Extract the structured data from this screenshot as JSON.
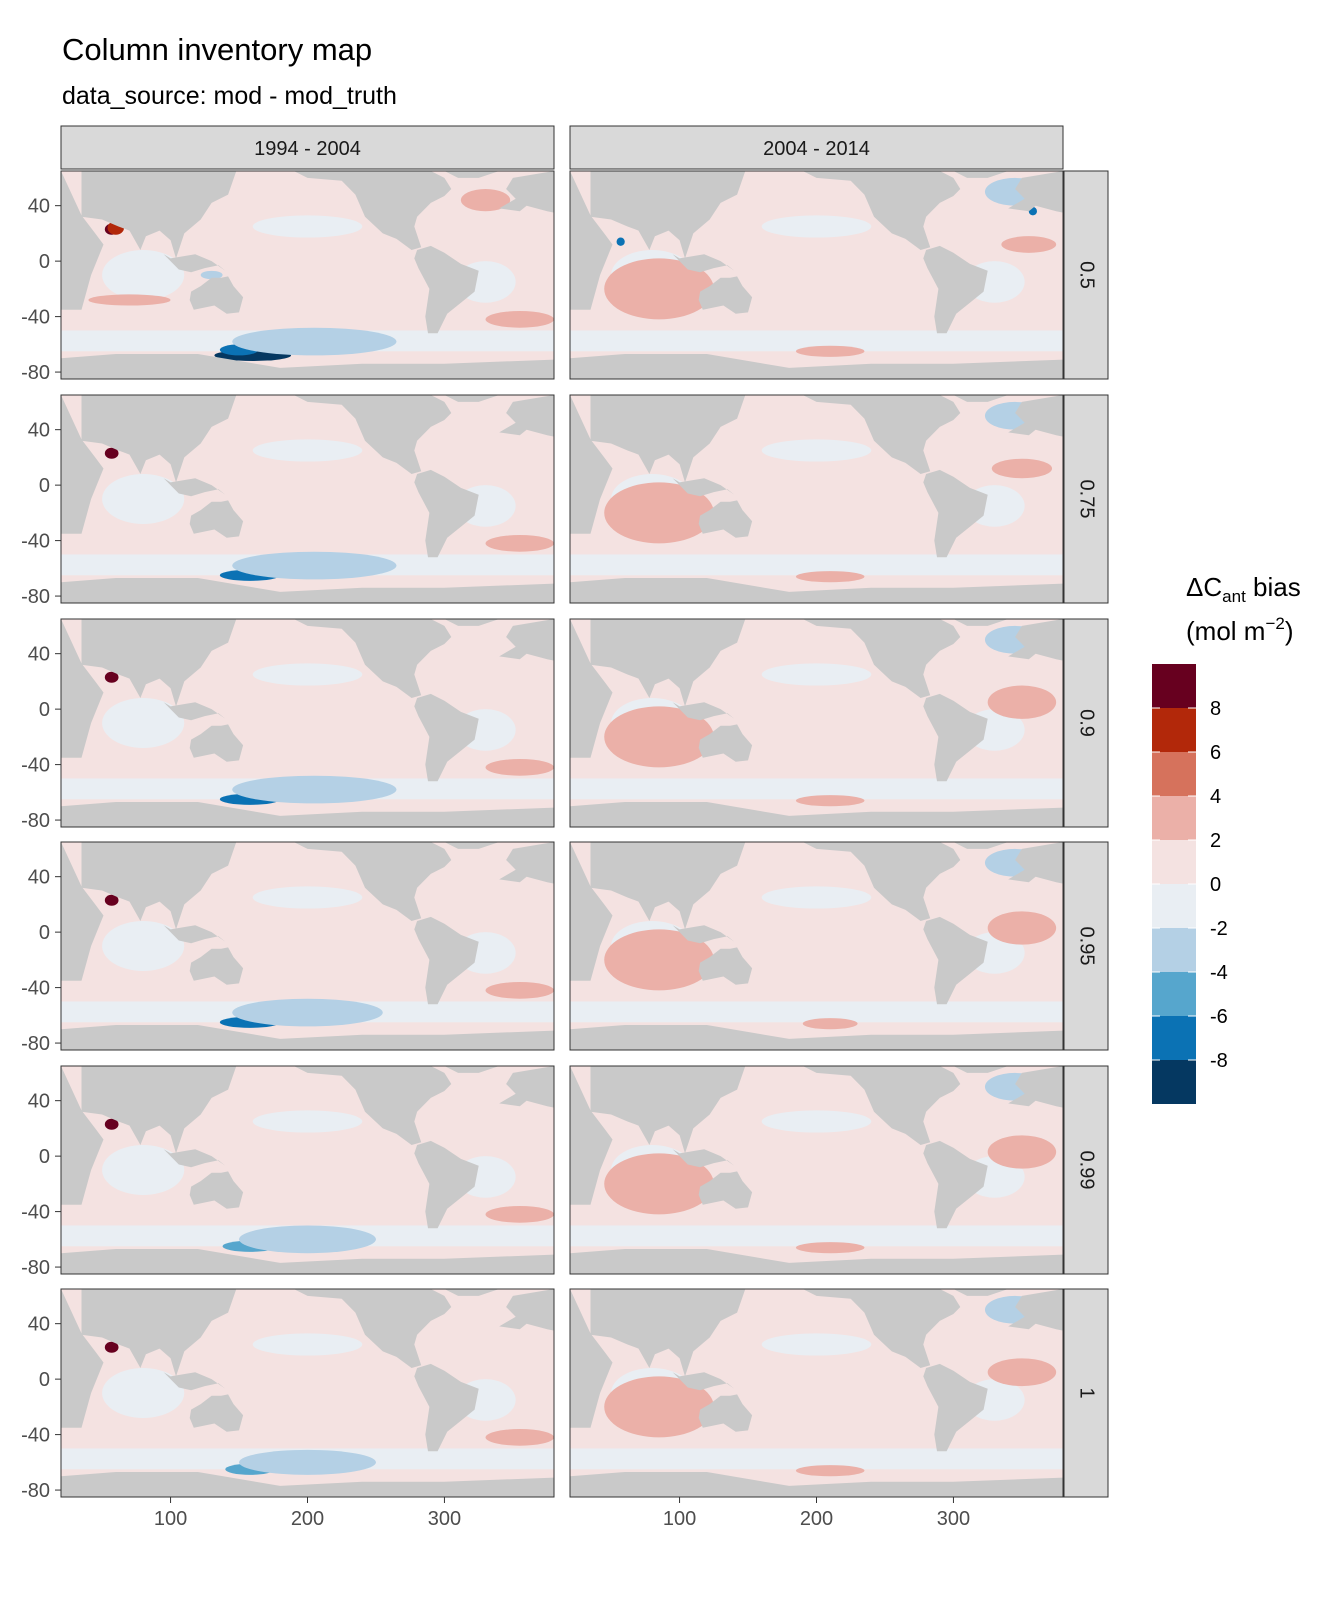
{
  "title": "Column inventory map",
  "subtitle": "data_source: mod - mod_truth",
  "columns": [
    "1994 - 2004",
    "2004 - 2014"
  ],
  "rows": [
    "0.5",
    "0.75",
    "0.9",
    "0.95",
    "0.99",
    "1"
  ],
  "axes": {
    "x_ticks": [
      "100",
      "200",
      "300"
    ],
    "y_ticks": [
      "40",
      "0",
      "-40",
      "-80"
    ],
    "x_tick_values": [
      100,
      200,
      300
    ],
    "y_tick_values": [
      40,
      0,
      -40,
      -80
    ],
    "xlim": [
      20,
      380
    ],
    "ylim": [
      -85,
      65
    ]
  },
  "legend": {
    "title_main": "ΔC",
    "title_sub": "ant",
    "title_after": " bias",
    "unit_open": "(mol m",
    "unit_exp": "−2",
    "unit_close": ")",
    "tick_labels": [
      "8",
      "6",
      "4",
      "2",
      "0",
      "-2",
      "-4",
      "-6",
      "-8"
    ],
    "bins": [
      {
        "range": "8 to 10",
        "color": "#67001f"
      },
      {
        "range": "6 to 8",
        "color": "#b2280a"
      },
      {
        "range": "4 to 6",
        "color": "#d6725c"
      },
      {
        "range": "2 to 4",
        "color": "#ebb0a8"
      },
      {
        "range": "0 to 2",
        "color": "#f4e2e1"
      },
      {
        "range": "-2 to 0",
        "color": "#e9eef3"
      },
      {
        "range": "-4 to -2",
        "color": "#b4d0e5"
      },
      {
        "range": "-6 to -4",
        "color": "#56a6cd"
      },
      {
        "range": "-8 to -6",
        "color": "#0b72b4"
      },
      {
        "range": "-10 to -8",
        "color": "#053861"
      }
    ]
  },
  "colors": {
    "land": "#c9c9c9",
    "strip": "#d9d9d9",
    "panel_border": "#333333"
  },
  "chart_data": {
    "type": "heatmap",
    "facet_columns": [
      "1994 - 2004",
      "2004 - 2014"
    ],
    "facet_rows": [
      "0.5",
      "0.75",
      "0.9",
      "0.95",
      "0.99",
      "1"
    ],
    "xlim": [
      20,
      380
    ],
    "ylim": [
      -85,
      65
    ],
    "value_bins": [
      -10,
      -8,
      -6,
      -4,
      -2,
      0,
      2,
      4,
      6,
      8,
      10
    ],
    "land_regions": [
      {
        "name": "africa",
        "lonlat": [
          [
            20,
            65
          ],
          [
            35,
            33
          ],
          [
            45,
            20
          ],
          [
            51,
            12
          ],
          [
            42,
            -10
          ],
          [
            35,
            -35
          ],
          [
            20,
            -35
          ],
          [
            20,
            65
          ]
        ]
      },
      {
        "name": "arabia_india",
        "lonlat": [
          [
            35,
            32
          ],
          [
            50,
            30
          ],
          [
            62,
            25
          ],
          [
            70,
            22
          ],
          [
            78,
            8
          ],
          [
            82,
            18
          ],
          [
            92,
            22
          ],
          [
            100,
            15
          ],
          [
            104,
            2
          ],
          [
            110,
            20
          ],
          [
            122,
            30
          ],
          [
            130,
            42
          ],
          [
            142,
            48
          ],
          [
            148,
            65
          ],
          [
            35,
            65
          ]
        ]
      },
      {
        "name": "maritime_continent",
        "lonlat": [
          [
            95,
            5
          ],
          [
            106,
            -6
          ],
          [
            115,
            -8
          ],
          [
            125,
            -5
          ],
          [
            135,
            -3
          ],
          [
            140,
            -7
          ],
          [
            130,
            0
          ],
          [
            118,
            5
          ],
          [
            100,
            2
          ]
        ]
      },
      {
        "name": "australia",
        "lonlat": [
          [
            115,
            -22
          ],
          [
            122,
            -18
          ],
          [
            130,
            -12
          ],
          [
            137,
            -12
          ],
          [
            142,
            -11
          ],
          [
            146,
            -18
          ],
          [
            153,
            -26
          ],
          [
            150,
            -37
          ],
          [
            141,
            -38
          ],
          [
            132,
            -32
          ],
          [
            117,
            -35
          ],
          [
            114,
            -28
          ]
        ]
      },
      {
        "name": "north_america",
        "lonlat": [
          [
            190,
            65
          ],
          [
            200,
            60
          ],
          [
            225,
            58
          ],
          [
            235,
            48
          ],
          [
            242,
            32
          ],
          [
            255,
            20
          ],
          [
            265,
            16
          ],
          [
            276,
            8
          ],
          [
            283,
            10
          ],
          [
            278,
            25
          ],
          [
            280,
            32
          ],
          [
            290,
            42
          ],
          [
            300,
            47
          ],
          [
            305,
            52
          ],
          [
            300,
            60
          ],
          [
            290,
            65
          ]
        ]
      },
      {
        "name": "south_america",
        "lonlat": [
          [
            280,
            8
          ],
          [
            290,
            11
          ],
          [
            300,
            6
          ],
          [
            312,
            -2
          ],
          [
            325,
            -7
          ],
          [
            322,
            -22
          ],
          [
            312,
            -30
          ],
          [
            302,
            -38
          ],
          [
            295,
            -52
          ],
          [
            288,
            -52
          ],
          [
            286,
            -40
          ],
          [
            289,
            -20
          ],
          [
            281,
            -5
          ],
          [
            278,
            2
          ]
        ]
      },
      {
        "name": "greenland",
        "lonlat": [
          [
            310,
            60
          ],
          [
            325,
            60
          ],
          [
            340,
            65
          ],
          [
            300,
            65
          ]
        ]
      },
      {
        "name": "europe",
        "lonlat": [
          [
            340,
            38
          ],
          [
            355,
            36
          ],
          [
            360,
            40
          ],
          [
            375,
            36
          ],
          [
            380,
            35
          ],
          [
            380,
            65
          ],
          [
            350,
            60
          ],
          [
            345,
            52
          ],
          [
            352,
            45
          ]
        ]
      },
      {
        "name": "antarctica",
        "lonlat": [
          [
            20,
            -85
          ],
          [
            380,
            -85
          ],
          [
            380,
            -71
          ],
          [
            300,
            -74
          ],
          [
            240,
            -74
          ],
          [
            180,
            -77
          ],
          [
            120,
            -67
          ],
          [
            60,
            -67
          ],
          [
            20,
            -70
          ]
        ]
      }
    ],
    "panels": [
      {
        "period": "1994 - 2004",
        "row": "0.5",
        "anomalies": [
          {
            "bin": "8 to 10",
            "lon": 57,
            "lat": 23,
            "rlon": 5,
            "rlat": 4
          },
          {
            "bin": "6 to 8",
            "lon": 60,
            "lat": 24,
            "rlon": 6,
            "rlat": 5
          },
          {
            "bin": "-10 to -8",
            "lon": 160,
            "lat": -68,
            "rlon": 28,
            "rlat": 4
          },
          {
            "bin": "-8 to -6",
            "lon": 150,
            "lat": -64,
            "rlon": 14,
            "rlat": 4
          },
          {
            "bin": "-4 to -2",
            "lon": 205,
            "lat": -58,
            "rlon": 60,
            "rlat": 10
          },
          {
            "bin": "-4 to -2",
            "lon": 130,
            "lat": -10,
            "rlon": 8,
            "rlat": 3
          },
          {
            "bin": "2 to 4",
            "lon": 70,
            "lat": -28,
            "rlon": 30,
            "rlat": 4
          },
          {
            "bin": "2 to 4",
            "lon": 355,
            "lat": -42,
            "rlon": 25,
            "rlat": 6
          },
          {
            "bin": "2 to 4",
            "lon": 330,
            "lat": 44,
            "rlon": 18,
            "rlat": 8
          }
        ]
      },
      {
        "period": "2004 - 2014",
        "row": "0.5",
        "anomalies": [
          {
            "bin": "2 to 4",
            "lon": 85,
            "lat": -20,
            "rlon": 40,
            "rlat": 22
          },
          {
            "bin": "2 to 4",
            "lon": 355,
            "lat": 12,
            "rlon": 20,
            "rlat": 6
          },
          {
            "bin": "2 to 4",
            "lon": 210,
            "lat": -65,
            "rlon": 25,
            "rlat": 4
          },
          {
            "bin": "-4 to -2",
            "lon": 345,
            "lat": 50,
            "rlon": 22,
            "rlat": 10
          },
          {
            "bin": "-8 to -6",
            "lon": 358,
            "lat": 36,
            "rlon": 3,
            "rlat": 3
          },
          {
            "bin": "-8 to -6",
            "lon": 57,
            "lat": 14,
            "rlon": 3,
            "rlat": 3
          }
        ]
      },
      {
        "period": "1994 - 2004",
        "row": "0.75",
        "anomalies": [
          {
            "bin": "8 to 10",
            "lon": 57,
            "lat": 23,
            "rlon": 5,
            "rlat": 4
          },
          {
            "bin": "-8 to -6",
            "lon": 158,
            "lat": -65,
            "rlon": 22,
            "rlat": 4
          },
          {
            "bin": "-4 to -2",
            "lon": 205,
            "lat": -58,
            "rlon": 60,
            "rlat": 10
          },
          {
            "bin": "2 to 4",
            "lon": 355,
            "lat": -42,
            "rlon": 25,
            "rlat": 6
          }
        ]
      },
      {
        "period": "2004 - 2014",
        "row": "0.75",
        "anomalies": [
          {
            "bin": "2 to 4",
            "lon": 85,
            "lat": -20,
            "rlon": 40,
            "rlat": 22
          },
          {
            "bin": "2 to 4",
            "lon": 350,
            "lat": 12,
            "rlon": 22,
            "rlat": 7
          },
          {
            "bin": "2 to 4",
            "lon": 210,
            "lat": -66,
            "rlon": 25,
            "rlat": 4
          },
          {
            "bin": "-4 to -2",
            "lon": 345,
            "lat": 50,
            "rlon": 22,
            "rlat": 10
          }
        ]
      },
      {
        "period": "1994 - 2004",
        "row": "0.9",
        "anomalies": [
          {
            "bin": "8 to 10",
            "lon": 57,
            "lat": 23,
            "rlon": 5,
            "rlat": 4
          },
          {
            "bin": "-8 to -6",
            "lon": 158,
            "lat": -65,
            "rlon": 22,
            "rlat": 4
          },
          {
            "bin": "-4 to -2",
            "lon": 205,
            "lat": -58,
            "rlon": 60,
            "rlat": 10
          },
          {
            "bin": "2 to 4",
            "lon": 355,
            "lat": -42,
            "rlon": 25,
            "rlat": 6
          }
        ]
      },
      {
        "period": "2004 - 2014",
        "row": "0.9",
        "anomalies": [
          {
            "bin": "2 to 4",
            "lon": 85,
            "lat": -20,
            "rlon": 40,
            "rlat": 22
          },
          {
            "bin": "2 to 4",
            "lon": 350,
            "lat": 5,
            "rlon": 25,
            "rlat": 12
          },
          {
            "bin": "2 to 4",
            "lon": 210,
            "lat": -66,
            "rlon": 25,
            "rlat": 4
          },
          {
            "bin": "-4 to -2",
            "lon": 345,
            "lat": 50,
            "rlon": 22,
            "rlat": 10
          }
        ]
      },
      {
        "period": "1994 - 2004",
        "row": "0.95",
        "anomalies": [
          {
            "bin": "8 to 10",
            "lon": 57,
            "lat": 23,
            "rlon": 5,
            "rlat": 4
          },
          {
            "bin": "-8 to -6",
            "lon": 158,
            "lat": -65,
            "rlon": 22,
            "rlat": 4
          },
          {
            "bin": "-4 to -2",
            "lon": 200,
            "lat": -58,
            "rlon": 55,
            "rlat": 10
          },
          {
            "bin": "2 to 4",
            "lon": 355,
            "lat": -42,
            "rlon": 25,
            "rlat": 6
          }
        ]
      },
      {
        "period": "2004 - 2014",
        "row": "0.95",
        "anomalies": [
          {
            "bin": "2 to 4",
            "lon": 85,
            "lat": -20,
            "rlon": 40,
            "rlat": 22
          },
          {
            "bin": "2 to 4",
            "lon": 350,
            "lat": 3,
            "rlon": 25,
            "rlat": 12
          },
          {
            "bin": "2 to 4",
            "lon": 210,
            "lat": -66,
            "rlon": 20,
            "rlat": 4
          },
          {
            "bin": "-4 to -2",
            "lon": 345,
            "lat": 50,
            "rlon": 22,
            "rlat": 10
          }
        ]
      },
      {
        "period": "1994 - 2004",
        "row": "0.99",
        "anomalies": [
          {
            "bin": "8 to 10",
            "lon": 57,
            "lat": 23,
            "rlon": 5,
            "rlat": 4
          },
          {
            "bin": "-6 to -4",
            "lon": 158,
            "lat": -65,
            "rlon": 20,
            "rlat": 4
          },
          {
            "bin": "-4 to -2",
            "lon": 200,
            "lat": -60,
            "rlon": 50,
            "rlat": 10
          },
          {
            "bin": "2 to 4",
            "lon": 355,
            "lat": -42,
            "rlon": 25,
            "rlat": 6
          }
        ]
      },
      {
        "period": "2004 - 2014",
        "row": "0.99",
        "anomalies": [
          {
            "bin": "2 to 4",
            "lon": 85,
            "lat": -20,
            "rlon": 40,
            "rlat": 22
          },
          {
            "bin": "2 to 4",
            "lon": 350,
            "lat": 3,
            "rlon": 25,
            "rlat": 12
          },
          {
            "bin": "2 to 4",
            "lon": 210,
            "lat": -66,
            "rlon": 25,
            "rlat": 4
          },
          {
            "bin": "-4 to -2",
            "lon": 345,
            "lat": 50,
            "rlon": 22,
            "rlat": 10
          }
        ]
      },
      {
        "period": "1994 - 2004",
        "row": "1",
        "anomalies": [
          {
            "bin": "8 to 10",
            "lon": 57,
            "lat": 23,
            "rlon": 5,
            "rlat": 4
          },
          {
            "bin": "-6 to -4",
            "lon": 158,
            "lat": -65,
            "rlon": 18,
            "rlat": 4
          },
          {
            "bin": "-4 to -2",
            "lon": 200,
            "lat": -60,
            "rlon": 50,
            "rlat": 9
          },
          {
            "bin": "2 to 4",
            "lon": 355,
            "lat": -42,
            "rlon": 25,
            "rlat": 6
          }
        ]
      },
      {
        "period": "2004 - 2014",
        "row": "1",
        "anomalies": [
          {
            "bin": "2 to 4",
            "lon": 85,
            "lat": -20,
            "rlon": 40,
            "rlat": 22
          },
          {
            "bin": "2 to 4",
            "lon": 350,
            "lat": 5,
            "rlon": 25,
            "rlat": 10
          },
          {
            "bin": "2 to 4",
            "lon": 210,
            "lat": -66,
            "rlon": 25,
            "rlat": 4
          },
          {
            "bin": "-4 to -2",
            "lon": 345,
            "lat": 50,
            "rlon": 22,
            "rlat": 10
          }
        ]
      }
    ]
  }
}
